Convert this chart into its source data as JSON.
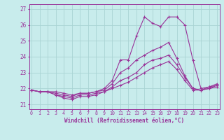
{
  "xlabel": "Windchill (Refroidissement éolien,°C)",
  "bg_color": "#c8ecec",
  "grid_color": "#aad4d4",
  "line_color": "#993399",
  "xlim": [
    -0.3,
    23.3
  ],
  "ylim": [
    20.7,
    27.3
  ],
  "yticks": [
    21,
    22,
    23,
    24,
    25,
    26,
    27
  ],
  "xticks": [
    0,
    1,
    2,
    3,
    4,
    5,
    6,
    7,
    8,
    9,
    10,
    11,
    12,
    13,
    14,
    15,
    16,
    17,
    18,
    19,
    20,
    21,
    22,
    23
  ],
  "line1_top": [
    21.9,
    21.8,
    21.8,
    21.8,
    21.7,
    21.6,
    21.7,
    21.7,
    21.8,
    22.0,
    22.5,
    23.8,
    23.8,
    25.3,
    26.5,
    26.1,
    25.9,
    26.5,
    26.5,
    26.0,
    23.8,
    22.0,
    22.1,
    22.3
  ],
  "line2_mid1": [
    21.9,
    21.8,
    21.8,
    21.7,
    21.6,
    21.5,
    21.7,
    21.7,
    21.8,
    21.9,
    22.3,
    23.0,
    23.3,
    23.8,
    24.1,
    24.4,
    24.6,
    24.9,
    23.9,
    22.8,
    22.0,
    21.9,
    22.1,
    22.2
  ],
  "line3_mid2": [
    21.9,
    21.8,
    21.8,
    21.6,
    21.5,
    21.4,
    21.6,
    21.6,
    21.7,
    21.8,
    22.1,
    22.5,
    22.7,
    23.0,
    23.5,
    23.8,
    23.9,
    24.1,
    23.5,
    22.7,
    22.0,
    21.9,
    22.0,
    22.2
  ],
  "line4_bot": [
    21.9,
    21.8,
    21.8,
    21.6,
    21.4,
    21.3,
    21.5,
    21.5,
    21.6,
    21.8,
    22.0,
    22.2,
    22.4,
    22.7,
    23.0,
    23.3,
    23.5,
    23.7,
    23.2,
    22.5,
    21.9,
    21.9,
    22.0,
    22.1
  ]
}
